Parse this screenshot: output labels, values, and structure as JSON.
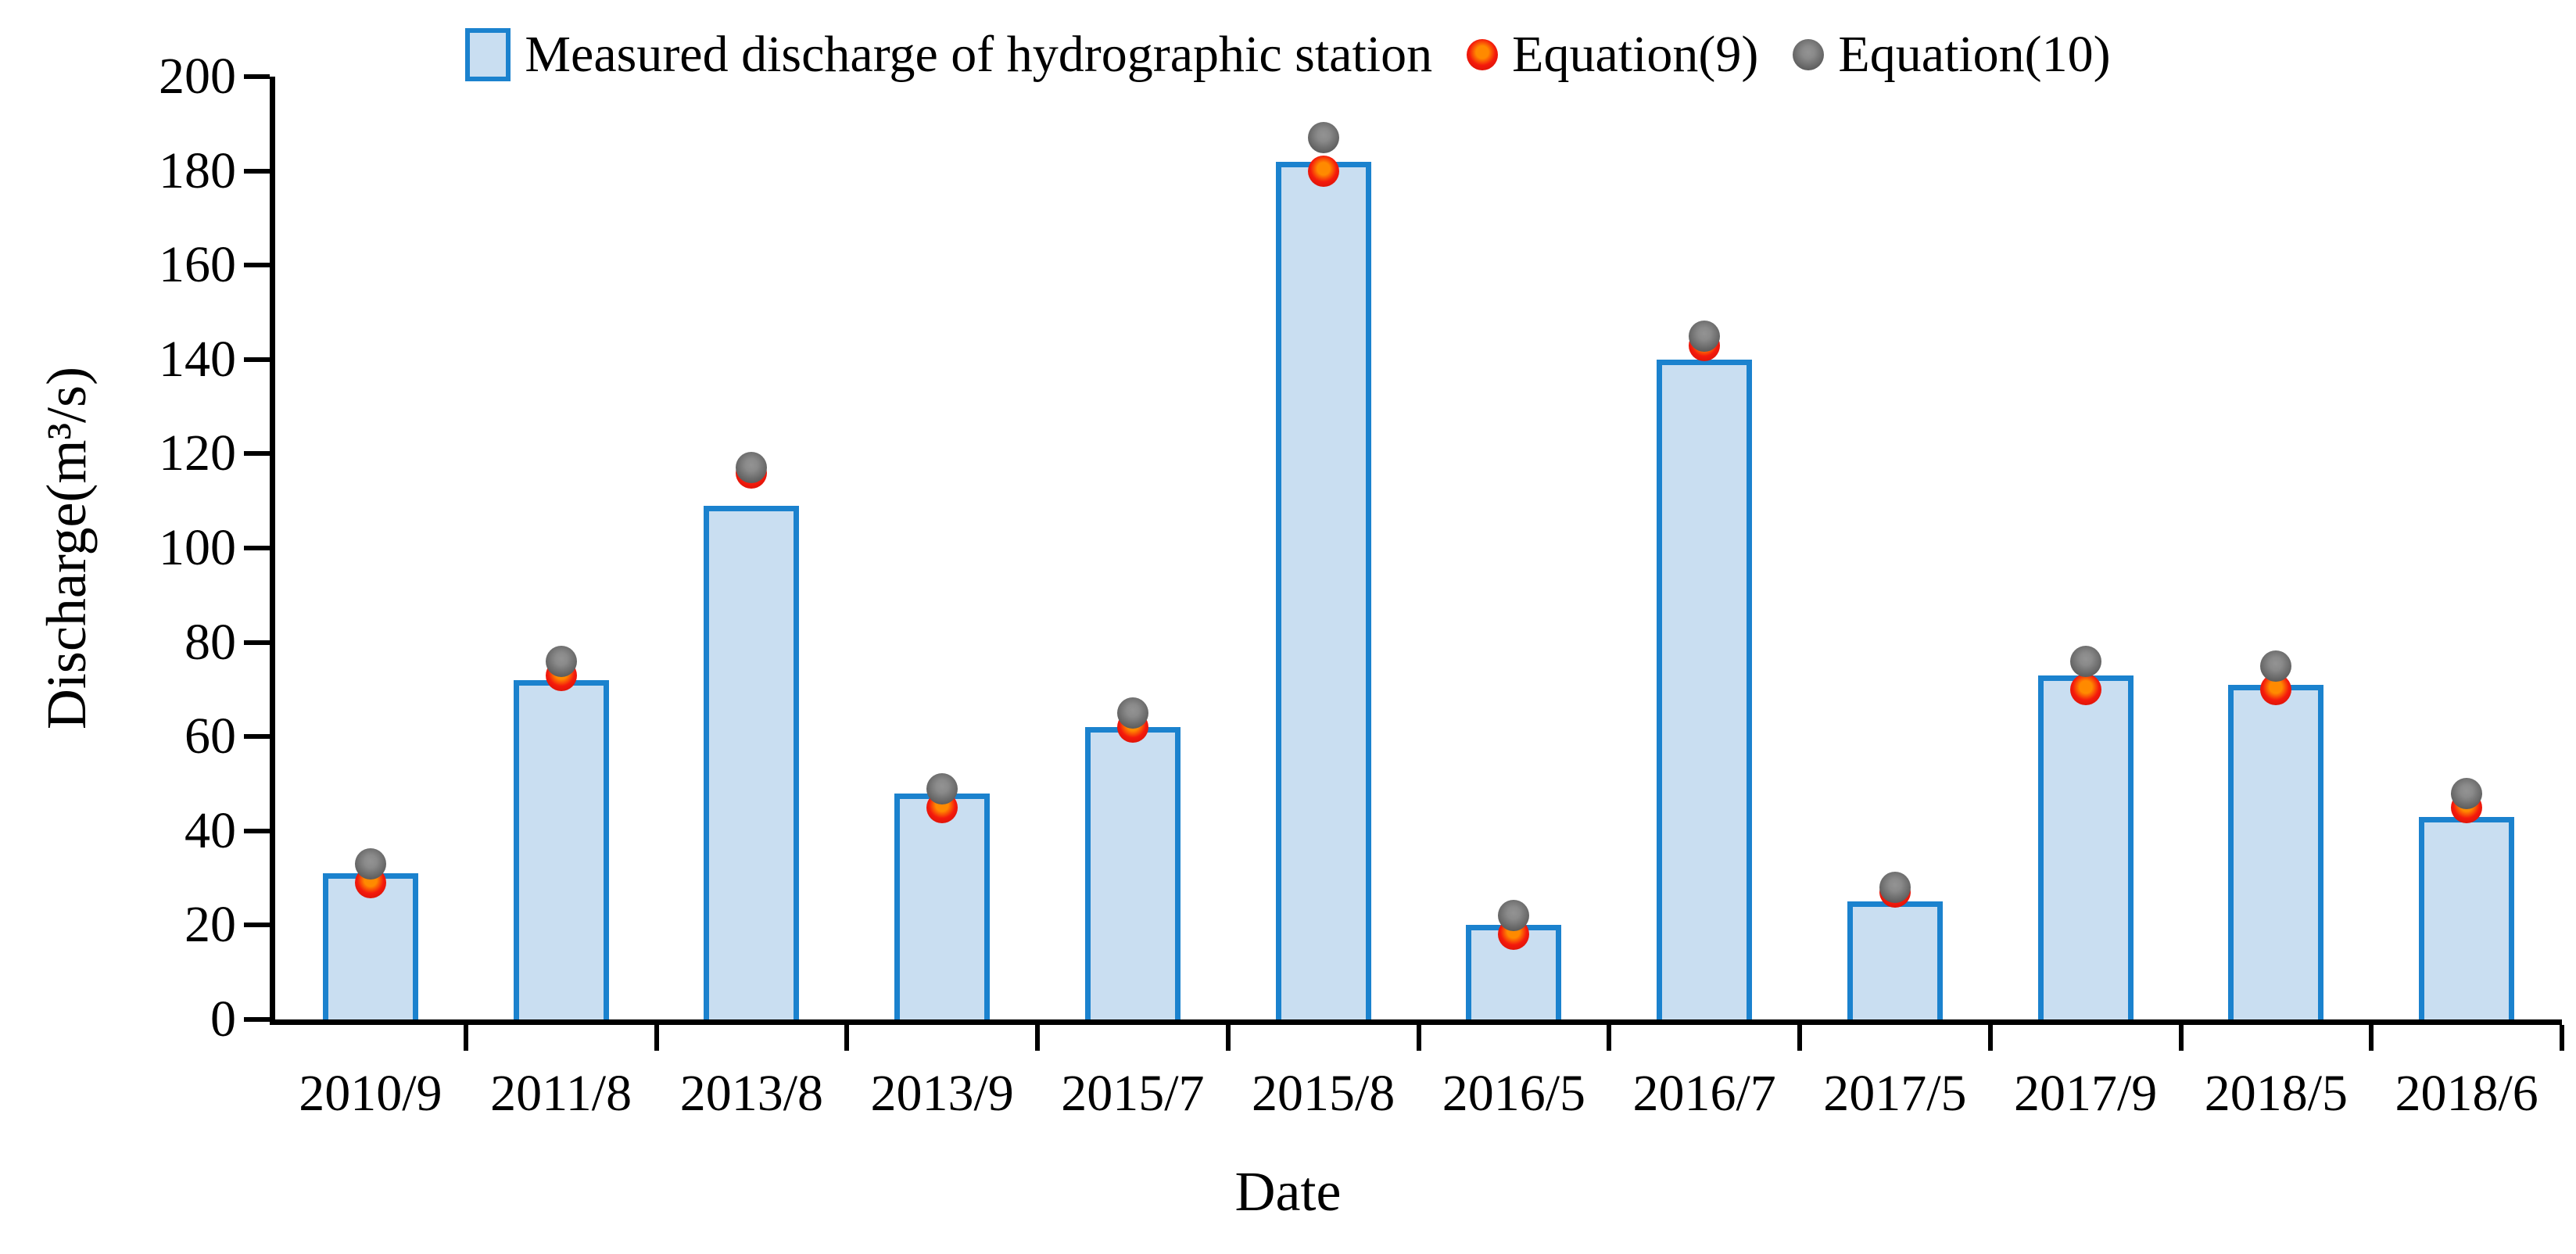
{
  "chart_data": {
    "type": "bar",
    "title": "",
    "categories": [
      "2010/9",
      "2011/8",
      "2013/8",
      "2013/9",
      "2015/7",
      "2015/8",
      "2016/5",
      "2016/7",
      "2017/5",
      "2017/9",
      "2018/5",
      "2018/6"
    ],
    "series": [
      {
        "name": "Measured discharge of hydrographic station",
        "kind": "bar",
        "fill_color": "#C9DEF1",
        "border_color": "#1B82CE",
        "values": [
          31,
          72,
          109,
          48,
          62,
          182,
          20,
          140,
          25,
          73,
          71,
          43
        ]
      },
      {
        "name": "Equation(9)",
        "kind": "point",
        "color": "#F2180C",
        "values": [
          29,
          73,
          116,
          45,
          62,
          180,
          18,
          143,
          27,
          70,
          70,
          45
        ]
      },
      {
        "name": "Equation(10)",
        "kind": "point",
        "color": "#6E6E6E",
        "values": [
          33,
          76,
          117,
          49,
          65,
          187,
          22,
          145,
          28,
          76,
          75,
          48
        ]
      }
    ],
    "xlabel": "Date",
    "ylabel": "Discharge(m³/s)",
    "ylim": [
      0,
      200
    ],
    "yticks": [
      0,
      20,
      40,
      60,
      80,
      100,
      120,
      140,
      160,
      180,
      200
    ],
    "grid": false,
    "legend_position": "top"
  }
}
